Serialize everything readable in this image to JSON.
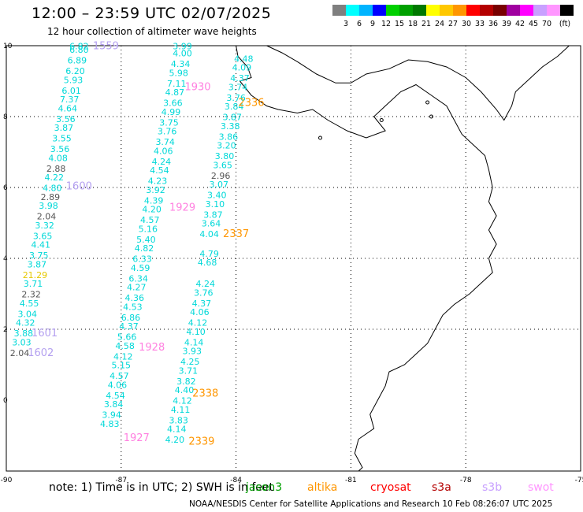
{
  "title": "12:00 – 23:59 UTC 02/07/2025",
  "subtitle": "12 hour collection of altimeter wave heights",
  "colorbar": {
    "colors": [
      "#7f7f7f",
      "#00ffff",
      "#00b4ff",
      "#0000ff",
      "#00d000",
      "#00a000",
      "#007800",
      "#ffff00",
      "#ffc800",
      "#ff9600",
      "#ff0000",
      "#b40000",
      "#780000",
      "#a000a0",
      "#ff00ff",
      "#c8a0ff",
      "#ff96ff",
      "#000000"
    ],
    "labels": [
      "3",
      "6",
      "9",
      "12",
      "15",
      "18",
      "21",
      "24",
      "27",
      "30",
      "33",
      "36",
      "39",
      "42",
      "45",
      "70"
    ],
    "unit": "(ft)"
  },
  "axes": {
    "x_ticks": [
      "-90",
      "-87",
      "-84",
      "-81",
      "-78",
      "-75"
    ],
    "y_ticks": [
      "0",
      "2",
      "4",
      "6",
      "8",
      "10"
    ]
  },
  "legend": {
    "note": "note: 1) Time is in UTC; 2) SWH is in feet",
    "satellites": [
      {
        "name": "jason3",
        "color": "#00a000"
      },
      {
        "name": "altika",
        "color": "#ff9600"
      },
      {
        "name": "cryosat",
        "color": "#ff0000"
      },
      {
        "name": "s3a",
        "color": "#b40000"
      },
      {
        "name": "s3b",
        "color": "#c8a0ff"
      },
      {
        "name": "swot",
        "color": "#ff96ff"
      }
    ]
  },
  "credit": "NOAA/NESDIS Center for Satellite Applications and Research    10 Feb 08:26:07 UTC 2025",
  "tracks": [
    {
      "id": "track-1",
      "points": [
        {
          "lon": -88.1,
          "lat": 9.9,
          "v": "6.82",
          "c": "cyan"
        },
        {
          "lon": -88.1,
          "lat": 9.8,
          "v": "6.80",
          "c": "cyan"
        },
        {
          "lon": -88.15,
          "lat": 9.5,
          "v": "6.89",
          "c": "cyan"
        },
        {
          "lon": -88.2,
          "lat": 9.2,
          "v": "6.20",
          "c": "cyan"
        },
        {
          "lon": -88.25,
          "lat": 8.95,
          "v": "5.93",
          "c": "cyan"
        },
        {
          "lon": -88.3,
          "lat": 8.65,
          "v": "6.01",
          "c": "cyan"
        },
        {
          "lon": -88.35,
          "lat": 8.4,
          "v": "7.37",
          "c": "cyan"
        },
        {
          "lon": -88.4,
          "lat": 8.15,
          "v": "4.64",
          "c": "cyan"
        },
        {
          "lon": -88.45,
          "lat": 7.85,
          "v": "3.56",
          "c": "cyan"
        },
        {
          "lon": -88.5,
          "lat": 7.6,
          "v": "3.87",
          "c": "cyan"
        },
        {
          "lon": -88.55,
          "lat": 7.3,
          "v": "3.55",
          "c": "cyan"
        },
        {
          "lon": -88.6,
          "lat": 7.0,
          "v": "3.56",
          "c": "cyan"
        },
        {
          "lon": -88.65,
          "lat": 6.75,
          "v": "4.08",
          "c": "cyan"
        },
        {
          "lon": -88.7,
          "lat": 6.45,
          "v": "2.88",
          "c": "gray"
        },
        {
          "lon": -88.75,
          "lat": 6.2,
          "v": "4.22",
          "c": "cyan"
        },
        {
          "lon": -88.8,
          "lat": 5.9,
          "v": "4.80",
          "c": "cyan"
        },
        {
          "lon": -88.85,
          "lat": 5.65,
          "v": "2.89",
          "c": "gray"
        },
        {
          "lon": -88.9,
          "lat": 5.4,
          "v": "3.98",
          "c": "cyan"
        },
        {
          "lon": -88.95,
          "lat": 5.1,
          "v": "2.04",
          "c": "gray"
        },
        {
          "lon": -89.0,
          "lat": 4.85,
          "v": "3.32",
          "c": "cyan"
        },
        {
          "lon": -89.05,
          "lat": 4.55,
          "v": "3.65",
          "c": "cyan"
        },
        {
          "lon": -89.1,
          "lat": 4.3,
          "v": "4.41",
          "c": "cyan"
        },
        {
          "lon": -89.15,
          "lat": 4.0,
          "v": "3.75",
          "c": "cyan"
        },
        {
          "lon": -89.2,
          "lat": 3.75,
          "v": "3.87",
          "c": "cyan"
        },
        {
          "lon": -89.25,
          "lat": 3.45,
          "v": "21.29",
          "c": "yellow"
        },
        {
          "lon": -89.3,
          "lat": 3.2,
          "v": "3.71",
          "c": "cyan"
        },
        {
          "lon": -89.35,
          "lat": 2.9,
          "v": "2.32",
          "c": "gray"
        },
        {
          "lon": -89.4,
          "lat": 2.65,
          "v": "4.55",
          "c": "cyan"
        },
        {
          "lon": -89.45,
          "lat": 2.35,
          "v": "3.04",
          "c": "cyan"
        },
        {
          "lon": -89.5,
          "lat": 2.1,
          "v": "4.32",
          "c": "cyan"
        },
        {
          "lon": -89.55,
          "lat": 1.8,
          "v": "3.88",
          "c": "cyan"
        },
        {
          "lon": -89.6,
          "lat": 1.55,
          "v": "3.03",
          "c": "cyan"
        },
        {
          "lon": -89.65,
          "lat": 1.25,
          "v": "2.04",
          "c": "gray"
        }
      ]
    },
    {
      "id": "track-2",
      "points": [
        {
          "lon": -85.4,
          "lat": 9.9,
          "v": "3.99",
          "c": "cyan"
        },
        {
          "lon": -85.4,
          "lat": 9.7,
          "v": "4.00",
          "c": "cyan"
        },
        {
          "lon": -85.45,
          "lat": 9.4,
          "v": "4.34",
          "c": "cyan"
        },
        {
          "lon": -85.5,
          "lat": 9.15,
          "v": "5.98",
          "c": "cyan"
        },
        {
          "lon": -85.55,
          "lat": 8.85,
          "v": "7.11",
          "c": "cyan"
        },
        {
          "lon": -85.6,
          "lat": 8.6,
          "v": "4.87",
          "c": "cyan"
        },
        {
          "lon": -85.65,
          "lat": 8.3,
          "v": "3.66",
          "c": "cyan"
        },
        {
          "lon": -85.7,
          "lat": 8.05,
          "v": "4.99",
          "c": "cyan"
        },
        {
          "lon": -85.75,
          "lat": 7.75,
          "v": "3.75",
          "c": "cyan"
        },
        {
          "lon": -85.8,
          "lat": 7.5,
          "v": "3.76",
          "c": "cyan"
        },
        {
          "lon": -85.85,
          "lat": 7.2,
          "v": "3.74",
          "c": "cyan"
        },
        {
          "lon": -85.9,
          "lat": 6.95,
          "v": "4.06",
          "c": "cyan"
        },
        {
          "lon": -85.95,
          "lat": 6.65,
          "v": "4.24",
          "c": "cyan"
        },
        {
          "lon": -86.0,
          "lat": 6.4,
          "v": "4.54",
          "c": "cyan"
        },
        {
          "lon": -86.05,
          "lat": 6.1,
          "v": "4.23",
          "c": "cyan"
        },
        {
          "lon": -86.1,
          "lat": 5.85,
          "v": "3.92",
          "c": "cyan"
        },
        {
          "lon": -86.15,
          "lat": 5.55,
          "v": "4.39",
          "c": "cyan"
        },
        {
          "lon": -86.2,
          "lat": 5.3,
          "v": "4.20",
          "c": "cyan"
        },
        {
          "lon": -86.25,
          "lat": 5.0,
          "v": "4.57",
          "c": "cyan"
        },
        {
          "lon": -86.3,
          "lat": 4.75,
          "v": "5.16",
          "c": "cyan"
        },
        {
          "lon": -86.35,
          "lat": 4.45,
          "v": "5.40",
          "c": "cyan"
        },
        {
          "lon": -86.4,
          "lat": 4.2,
          "v": "4.82",
          "c": "cyan"
        },
        {
          "lon": -86.45,
          "lat": 3.9,
          "v": "6.33",
          "c": "cyan"
        },
        {
          "lon": -86.5,
          "lat": 3.65,
          "v": "4.59",
          "c": "cyan"
        },
        {
          "lon": -86.55,
          "lat": 3.35,
          "v": "6.34",
          "c": "cyan"
        },
        {
          "lon": -86.6,
          "lat": 3.1,
          "v": "4.27",
          "c": "cyan"
        },
        {
          "lon": -86.65,
          "lat": 2.8,
          "v": "4.36",
          "c": "cyan"
        },
        {
          "lon": -86.7,
          "lat": 2.55,
          "v": "4.53",
          "c": "cyan"
        },
        {
          "lon": -86.75,
          "lat": 2.25,
          "v": "6.86",
          "c": "cyan"
        },
        {
          "lon": -86.8,
          "lat": 2.0,
          "v": "4.37",
          "c": "cyan"
        },
        {
          "lon": -86.85,
          "lat": 1.7,
          "v": "5.66",
          "c": "cyan"
        },
        {
          "lon": -86.9,
          "lat": 1.45,
          "v": "4.58",
          "c": "cyan"
        },
        {
          "lon": -86.95,
          "lat": 1.15,
          "v": "4.12",
          "c": "cyan"
        },
        {
          "lon": -87.0,
          "lat": 0.9,
          "v": "5.15",
          "c": "cyan"
        },
        {
          "lon": -87.05,
          "lat": 0.6,
          "v": "4.57",
          "c": "cyan"
        },
        {
          "lon": -87.1,
          "lat": 0.35,
          "v": "4.06",
          "c": "cyan"
        },
        {
          "lon": -87.15,
          "lat": 0.05,
          "v": "4.54",
          "c": "cyan"
        },
        {
          "lon": -87.2,
          "lat": -0.2,
          "v": "3.84",
          "c": "cyan"
        },
        {
          "lon": -87.25,
          "lat": -0.5,
          "v": "3.94",
          "c": "cyan"
        },
        {
          "lon": -87.3,
          "lat": -0.75,
          "v": "4.83",
          "c": "cyan"
        }
      ]
    },
    {
      "id": "track-3",
      "points": [
        {
          "lon": -83.8,
          "lat": 9.55,
          "v": "4.48",
          "c": "cyan"
        },
        {
          "lon": -83.85,
          "lat": 9.3,
          "v": "4.09",
          "c": "cyan"
        },
        {
          "lon": -83.9,
          "lat": 9.0,
          "v": "4.37",
          "c": "cyan"
        },
        {
          "lon": -83.95,
          "lat": 8.75,
          "v": "3.74",
          "c": "cyan"
        },
        {
          "lon": -84.0,
          "lat": 8.45,
          "v": "3.76",
          "c": "cyan"
        },
        {
          "lon": -84.05,
          "lat": 8.2,
          "v": "3.84",
          "c": "cyan"
        },
        {
          "lon": -84.1,
          "lat": 7.9,
          "v": "3.87",
          "c": "cyan"
        },
        {
          "lon": -84.15,
          "lat": 7.65,
          "v": "3.38",
          "c": "cyan"
        },
        {
          "lon": -84.2,
          "lat": 7.35,
          "v": "3.86",
          "c": "cyan"
        },
        {
          "lon": -84.25,
          "lat": 7.1,
          "v": "3.20",
          "c": "cyan"
        },
        {
          "lon": -84.3,
          "lat": 6.8,
          "v": "3.80",
          "c": "cyan"
        },
        {
          "lon": -84.35,
          "lat": 6.55,
          "v": "3.65",
          "c": "cyan"
        },
        {
          "lon": -84.4,
          "lat": 6.25,
          "v": "2.96",
          "c": "gray"
        },
        {
          "lon": -84.45,
          "lat": 6.0,
          "v": "3.07",
          "c": "cyan"
        },
        {
          "lon": -84.5,
          "lat": 5.7,
          "v": "3.40",
          "c": "cyan"
        },
        {
          "lon": -84.55,
          "lat": 5.45,
          "v": "3.10",
          "c": "cyan"
        },
        {
          "lon": -84.6,
          "lat": 5.15,
          "v": "3.87",
          "c": "cyan"
        },
        {
          "lon": -84.65,
          "lat": 4.9,
          "v": "3.64",
          "c": "cyan"
        },
        {
          "lon": -84.7,
          "lat": 4.6,
          "v": "4.04",
          "c": "cyan"
        }
      ]
    },
    {
      "id": "track-4",
      "points": [
        {
          "lon": -84.7,
          "lat": 4.05,
          "v": "4.79",
          "c": "cyan"
        },
        {
          "lon": -84.75,
          "lat": 3.8,
          "v": "4.68",
          "c": "cyan"
        },
        {
          "lon": -84.8,
          "lat": 3.2,
          "v": "4.24",
          "c": "cyan"
        },
        {
          "lon": -84.85,
          "lat": 2.95,
          "v": "3.76",
          "c": "cyan"
        },
        {
          "lon": -84.9,
          "lat": 2.65,
          "v": "4.37",
          "c": "cyan"
        },
        {
          "lon": -84.95,
          "lat": 2.4,
          "v": "4.06",
          "c": "cyan"
        },
        {
          "lon": -85.0,
          "lat": 2.1,
          "v": "4.12",
          "c": "cyan"
        },
        {
          "lon": -85.05,
          "lat": 1.85,
          "v": "4.10",
          "c": "cyan"
        },
        {
          "lon": -85.1,
          "lat": 1.55,
          "v": "4.14",
          "c": "cyan"
        },
        {
          "lon": -85.15,
          "lat": 1.3,
          "v": "3.93",
          "c": "cyan"
        },
        {
          "lon": -85.2,
          "lat": 1.0,
          "v": "4.25",
          "c": "cyan"
        },
        {
          "lon": -85.25,
          "lat": 0.75,
          "v": "3.71",
          "c": "cyan"
        },
        {
          "lon": -85.3,
          "lat": 0.45,
          "v": "3.82",
          "c": "cyan"
        },
        {
          "lon": -85.35,
          "lat": 0.2,
          "v": "4.40",
          "c": "cyan"
        },
        {
          "lon": -85.4,
          "lat": -0.1,
          "v": "4.12",
          "c": "cyan"
        },
        {
          "lon": -85.45,
          "lat": -0.35,
          "v": "4.11",
          "c": "cyan"
        },
        {
          "lon": -85.5,
          "lat": -0.65,
          "v": "3.83",
          "c": "cyan"
        },
        {
          "lon": -85.55,
          "lat": -0.9,
          "v": "4.14",
          "c": "cyan"
        },
        {
          "lon": -85.6,
          "lat": -1.2,
          "v": "4.20",
          "c": "cyan"
        }
      ]
    }
  ],
  "time_labels": [
    {
      "lon": -87.4,
      "lat": 9.9,
      "v": "1559",
      "c": "lavender"
    },
    {
      "lon": -85.0,
      "lat": 8.75,
      "v": "1930",
      "c": "pink"
    },
    {
      "lon": -83.6,
      "lat": 8.3,
      "v": "2336",
      "c": "orange"
    },
    {
      "lon": -88.1,
      "lat": 5.95,
      "v": "1600",
      "c": "lavender"
    },
    {
      "lon": -85.4,
      "lat": 5.35,
      "v": "1929",
      "c": "pink"
    },
    {
      "lon": -84.0,
      "lat": 4.6,
      "v": "2337",
      "c": "orange"
    },
    {
      "lon": -89.0,
      "lat": 1.8,
      "v": "1601",
      "c": "lavender"
    },
    {
      "lon": -89.1,
      "lat": 1.25,
      "v": "1602",
      "c": "lavender"
    },
    {
      "lon": -86.2,
      "lat": 1.4,
      "v": "1928",
      "c": "pink"
    },
    {
      "lon": -84.8,
      "lat": 0.1,
      "v": "2338",
      "c": "orange"
    },
    {
      "lon": -86.6,
      "lat": -1.15,
      "v": "1927",
      "c": "pink"
    },
    {
      "lon": -84.9,
      "lat": -1.25,
      "v": "2339",
      "c": "orange"
    }
  ]
}
